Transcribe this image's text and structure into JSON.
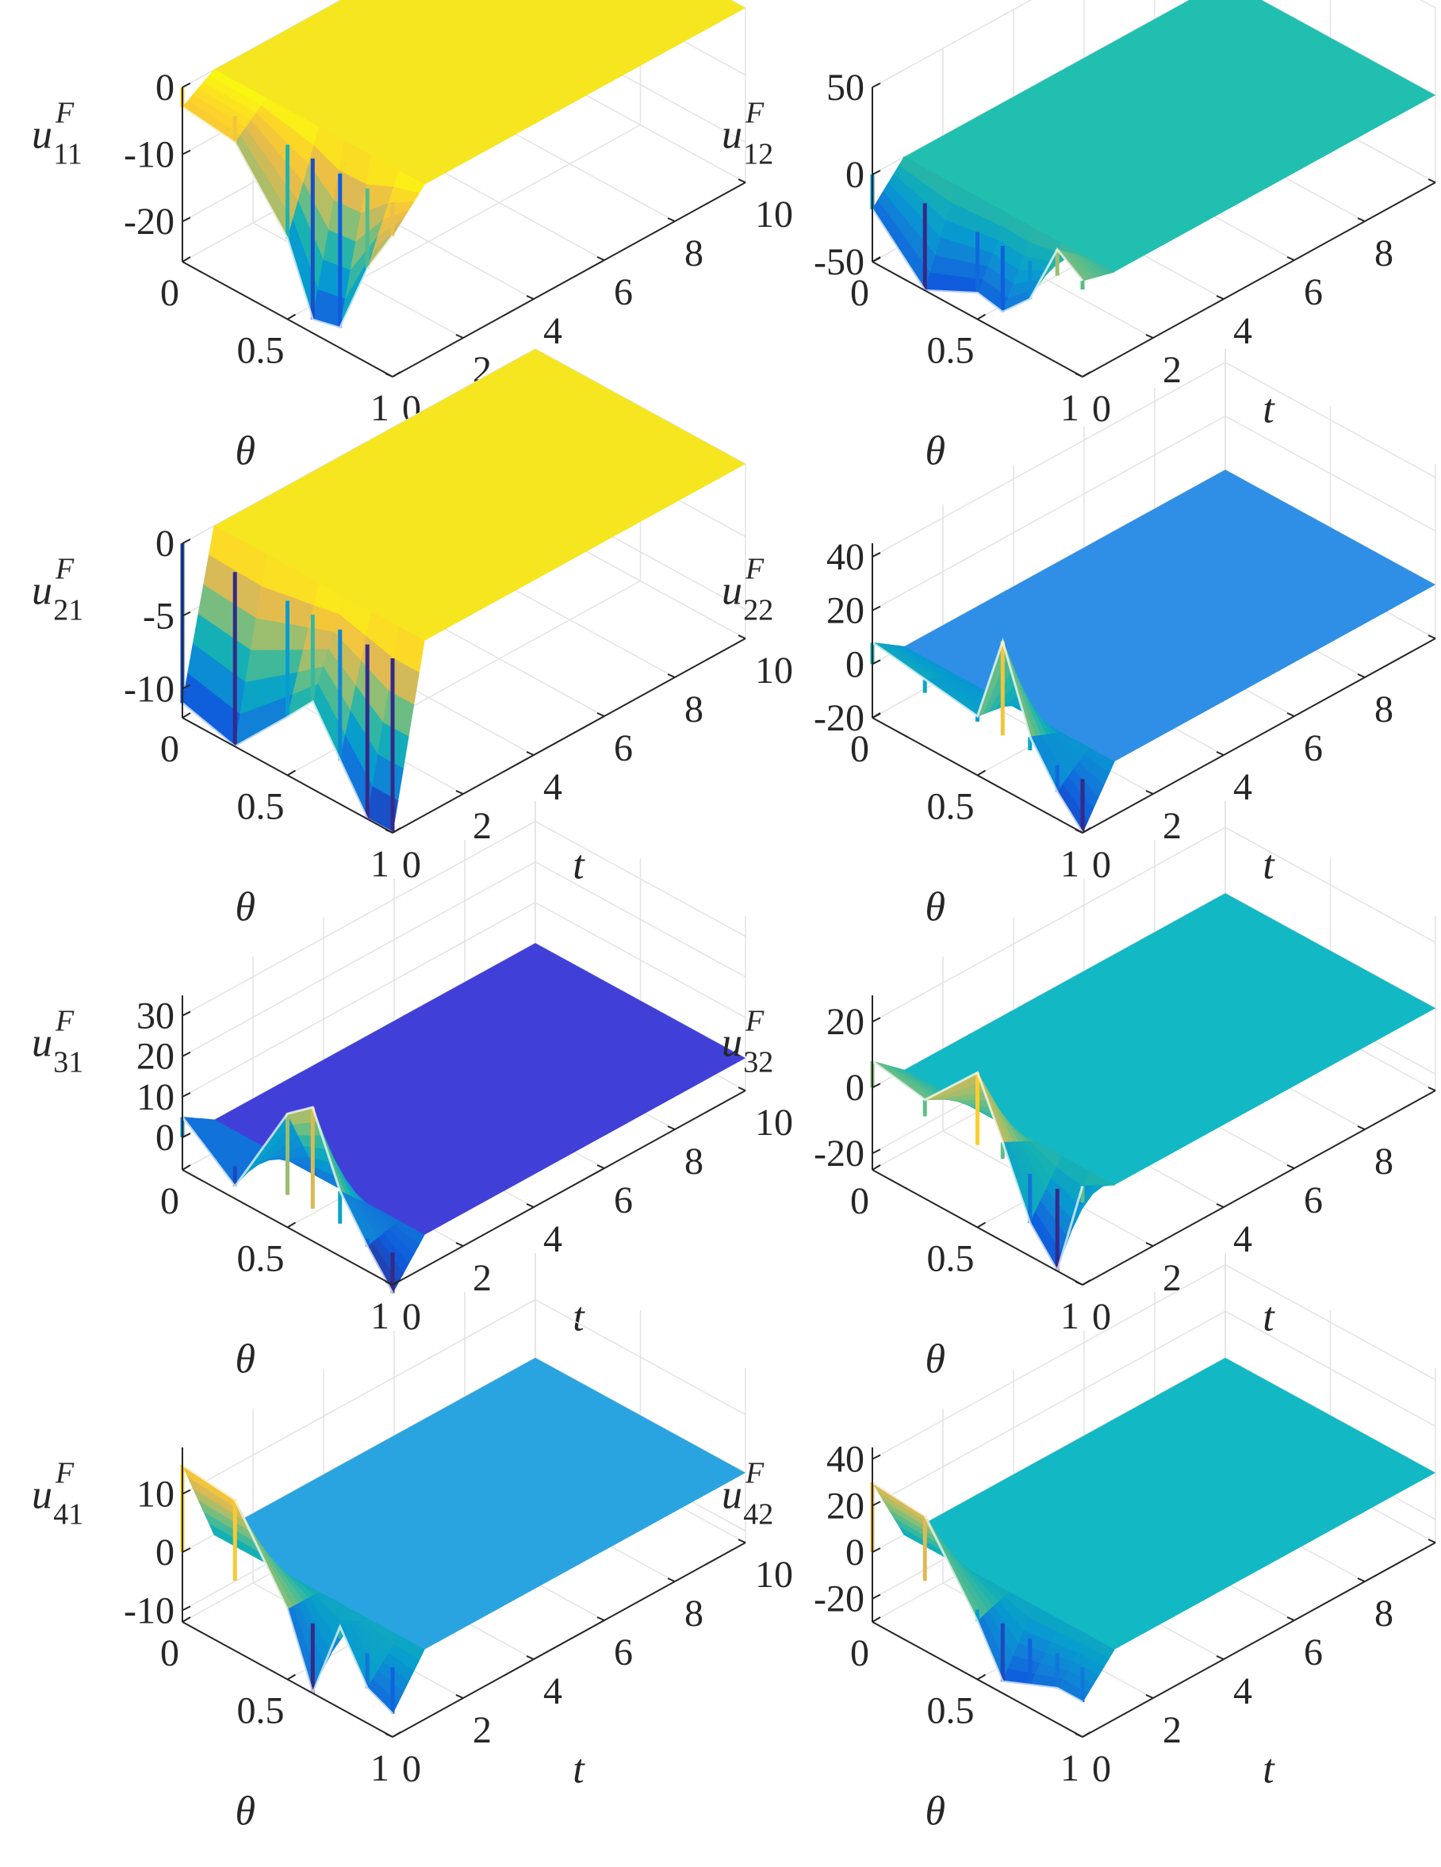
{
  "chart_data": [
    {
      "type": "surface",
      "zlabel": "u",
      "zlabel_sup": "F",
      "zlabel_sub": "11",
      "xlabel": "θ",
      "ylabel": "t",
      "x_ticks": [
        "0",
        "0.5",
        "1"
      ],
      "y_ticks": [
        "0",
        "2",
        "4",
        "6",
        "8",
        "10"
      ],
      "z_ticks": [
        "0",
        "-10",
        "-20"
      ],
      "zlim": [
        -26,
        0
      ],
      "xlim": [
        0,
        1
      ],
      "ylim": [
        0,
        10
      ],
      "plane_value": 0,
      "profile_theta": [
        0,
        0.25,
        0.5,
        0.62,
        0.75,
        0.88,
        1.0
      ],
      "profile_values": [
        -3,
        -4,
        -14,
        -24,
        -23,
        -12,
        -5
      ],
      "colormap": "parula",
      "plane_color": "#f5e61f"
    },
    {
      "type": "surface",
      "zlabel": "u",
      "zlabel_sup": "F",
      "zlabel_sub": "12",
      "xlabel": "θ",
      "ylabel": "t",
      "x_ticks": [
        "0",
        "0.5",
        "1"
      ],
      "y_ticks": [
        "0",
        "2",
        "4",
        "6",
        "8",
        "10"
      ],
      "z_ticks": [
        "50",
        "0",
        "-50"
      ],
      "zlim": [
        -50,
        50
      ],
      "xlim": [
        0,
        1
      ],
      "ylim": [
        0,
        10
      ],
      "plane_value": 0,
      "profile_theta": [
        0,
        0.25,
        0.5,
        0.62,
        0.75,
        0.88,
        1.0
      ],
      "profile_values": [
        -20,
        -50,
        -35,
        -38,
        -22,
        15,
        5
      ],
      "colormap": "parula",
      "plane_color": "#20bfb0"
    },
    {
      "type": "surface",
      "zlabel": "u",
      "zlabel_sup": "F",
      "zlabel_sub": "21",
      "xlabel": "θ",
      "ylabel": "t",
      "x_ticks": [
        "0",
        "0.5",
        "1"
      ],
      "y_ticks": [
        "0",
        "2",
        "4",
        "6",
        "8",
        "10"
      ],
      "z_ticks": [
        "0",
        "-5",
        "-10"
      ],
      "zlim": [
        -12,
        0
      ],
      "xlim": [
        0,
        1
      ],
      "ylim": [
        0,
        10
      ],
      "plane_value": 0,
      "profile_theta": [
        0,
        0.25,
        0.5,
        0.62,
        0.75,
        0.88,
        1.0
      ],
      "profile_values": [
        -11,
        -12,
        -8,
        -6,
        -9,
        -12,
        -12
      ],
      "colormap": "parula",
      "plane_color": "#f5e61f"
    },
    {
      "type": "surface",
      "zlabel": "u",
      "zlabel_sup": "F",
      "zlabel_sub": "22",
      "xlabel": "θ",
      "ylabel": "t",
      "x_ticks": [
        "0",
        "0.5",
        "1"
      ],
      "y_ticks": [
        "0",
        "2",
        "4",
        "6",
        "8",
        "10"
      ],
      "z_ticks": [
        "40",
        "20",
        "0",
        "-20"
      ],
      "zlim": [
        -20,
        45
      ],
      "xlim": [
        0,
        1
      ],
      "ylim": [
        0,
        10
      ],
      "plane_value": 0,
      "profile_theta": [
        0,
        0.25,
        0.5,
        0.62,
        0.75,
        0.88,
        1.0
      ],
      "profile_values": [
        8,
        5,
        2,
        35,
        5,
        -10,
        -20
      ],
      "colormap": "parula",
      "plane_color": "#2f8fe6"
    },
    {
      "type": "surface",
      "zlabel": "u",
      "zlabel_sup": "F",
      "zlabel_sub": "31",
      "xlabel": "θ",
      "ylabel": "t",
      "x_ticks": [
        "0",
        "0.5",
        "1"
      ],
      "y_ticks": [
        "0",
        "2",
        "4",
        "6",
        "8",
        "10"
      ],
      "z_ticks": [
        "30",
        "20",
        "10",
        "0"
      ],
      "zlim": [
        -8,
        35
      ],
      "xlim": [
        0,
        1
      ],
      "ylim": [
        0,
        10
      ],
      "plane_value": 0,
      "profile_theta": [
        0,
        0.25,
        0.5,
        0.62,
        0.75,
        0.88,
        1.0
      ],
      "profile_values": [
        5,
        -5,
        20,
        25,
        8,
        -2,
        -10
      ],
      "colormap": "parula",
      "plane_color": "#4040d8"
    },
    {
      "type": "surface",
      "zlabel": "u",
      "zlabel_sup": "F",
      "zlabel_sub": "32",
      "xlabel": "θ",
      "ylabel": "t",
      "x_ticks": [
        "0",
        "0.5",
        "1"
      ],
      "y_ticks": [
        "0",
        "2",
        "4",
        "6",
        "8",
        "10"
      ],
      "z_ticks": [
        "20",
        "0",
        "-20"
      ],
      "zlim": [
        -25,
        28
      ],
      "xlim": [
        0,
        1
      ],
      "ylim": [
        0,
        10
      ],
      "plane_value": 0,
      "profile_theta": [
        0,
        0.25,
        0.5,
        0.62,
        0.75,
        0.88,
        1.0
      ],
      "profile_values": [
        8,
        5,
        22,
        5,
        -15,
        -25,
        5
      ],
      "colormap": "parula",
      "plane_color": "#12b8c4"
    },
    {
      "type": "surface",
      "zlabel": "u",
      "zlabel_sup": "F",
      "zlabel_sub": "41",
      "xlabel": "θ",
      "ylabel": "t",
      "x_ticks": [
        "0",
        "0.5",
        "1"
      ],
      "y_ticks": [
        "0",
        "2",
        "4",
        "6",
        "8",
        "10"
      ],
      "z_ticks": [
        "10",
        "0",
        "-10"
      ],
      "zlim": [
        -12,
        18
      ],
      "xlim": [
        0,
        1
      ],
      "ylim": [
        0,
        10
      ],
      "plane_value": 0,
      "profile_theta": [
        0,
        0.25,
        0.5,
        0.62,
        0.75,
        0.88,
        1.0
      ],
      "profile_values": [
        15,
        14,
        0,
        -12,
        2,
        -6,
        -8
      ],
      "colormap": "parula",
      "plane_color": "#29a4e0"
    },
    {
      "type": "surface",
      "zlabel": "u",
      "zlabel_sup": "F",
      "zlabel_sub": "42",
      "xlabel": "θ",
      "ylabel": "t",
      "x_ticks": [
        "0",
        "0.5",
        "1"
      ],
      "y_ticks": [
        "0",
        "2",
        "4",
        "6",
        "8",
        "10"
      ],
      "z_ticks": [
        "40",
        "20",
        "0",
        "-20"
      ],
      "zlim": [
        -30,
        45
      ],
      "xlim": [
        0,
        1
      ],
      "ylim": [
        0,
        10
      ],
      "plane_value": 0,
      "profile_theta": [
        0,
        0.25,
        0.5,
        0.62,
        0.75,
        0.88,
        1.0
      ],
      "profile_values": [
        30,
        28,
        -5,
        -25,
        -20,
        -15,
        -15
      ],
      "colormap": "parula",
      "plane_color": "#12b8c4"
    }
  ]
}
